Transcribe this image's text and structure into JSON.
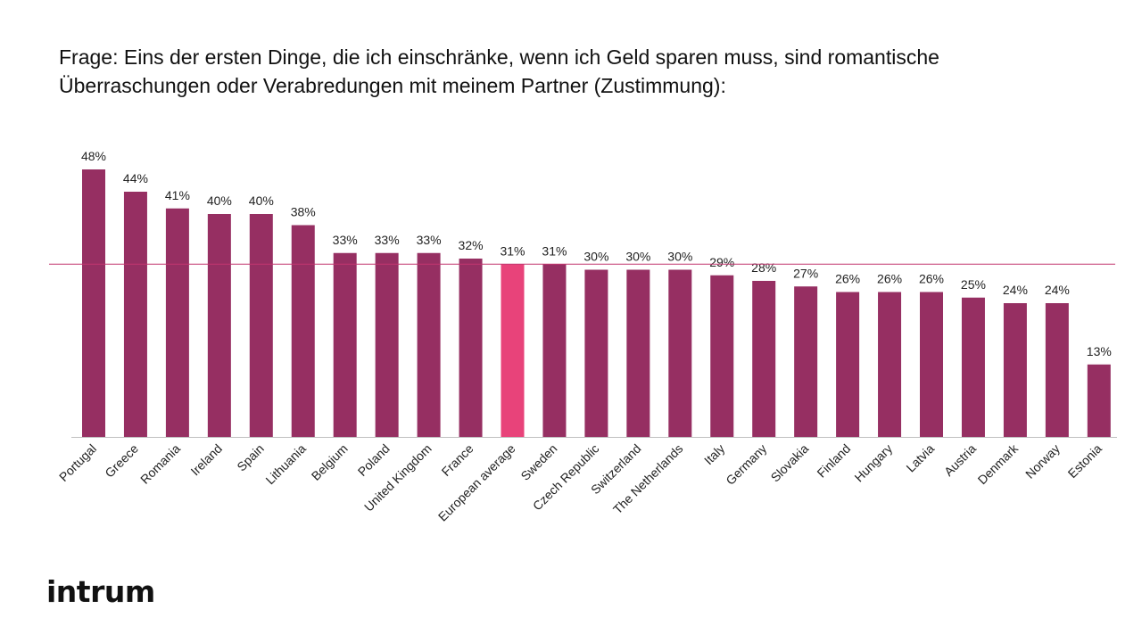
{
  "title": {
    "line1": "Frage: Eins der ersten Dinge, die ich einschränke, wenn ich Geld sparen  muss, sind romantische",
    "line2": "Überraschungen oder Verabredungen mit meinem Partner (Zustimmung):"
  },
  "logo": {
    "text": "intrum"
  },
  "colors": {
    "bar": "#962f62",
    "highlight": "#e8437a",
    "average_line": "#c2366f",
    "axis": "#bfbfbf"
  },
  "chart_data": {
    "type": "bar",
    "categories": [
      "Portugal",
      "Greece",
      "Romania",
      "Ireland",
      "Spain",
      "Lithuania",
      "Belgium",
      "Poland",
      "United Kingdom",
      "France",
      "European average",
      "Sweden",
      "Czech Republic",
      "Switzerland",
      "The Netherlands",
      "Italy",
      "Germany",
      "Slovakia",
      "Finland",
      "Hungary",
      "Latvia",
      "Austria",
      "Denmark",
      "Norway",
      "Estonia"
    ],
    "values": [
      48,
      44,
      41,
      40,
      40,
      38,
      33,
      33,
      33,
      32,
      31,
      31,
      30,
      30,
      30,
      29,
      28,
      27,
      26,
      26,
      26,
      25,
      24,
      24,
      13
    ],
    "labels": [
      "48%",
      "44%",
      "41%",
      "40%",
      "40%",
      "38%",
      "33%",
      "33%",
      "33%",
      "32%",
      "31%",
      "31%",
      "30%",
      "30%",
      "30%",
      "29%",
      "28%",
      "27%",
      "26%",
      "26%",
      "26%",
      "25%",
      "24%",
      "24%",
      "13%"
    ],
    "highlight_category": "European average",
    "reference_line": 31,
    "ylim": [
      0,
      50
    ],
    "grid": false,
    "legend": "none"
  }
}
